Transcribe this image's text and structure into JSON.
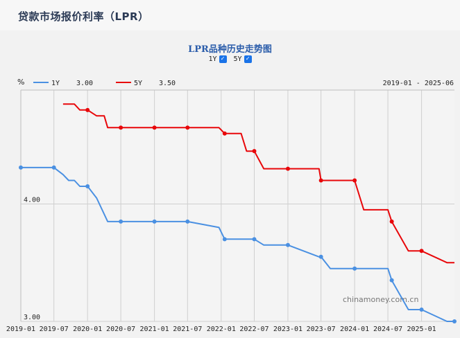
{
  "header": {
    "title": "贷款市场报价利率（LPR）"
  },
  "chart_title": "LPR品种历史走势图",
  "toggles": [
    {
      "label": "1Y",
      "checked": true
    },
    {
      "label": "5Y",
      "checked": true
    }
  ],
  "check_mark": "✓",
  "watermark": "chinamoney.com.cn",
  "colors": {
    "s1Y": "#4a90e2",
    "s5Y": "#e8070a",
    "grid": "#cfcfcf",
    "title": "#2a5caa"
  },
  "chart_data": {
    "type": "line",
    "unit": "%",
    "date_range": "2019-01 - 2025-06",
    "x_ticks": [
      "2019-01",
      "2019-07",
      "2020-01",
      "2020-07",
      "2021-01",
      "2021-07",
      "2022-01",
      "2022-07",
      "2023-01",
      "2023-07",
      "2024-01",
      "2024-07",
      "2025-01"
    ],
    "y_ticks": [
      "4.00",
      "3.00"
    ],
    "y_tick_values": [
      4.0,
      3.0
    ],
    "x_range": [
      "2019-01-01",
      "2025-06-30"
    ],
    "y_range": [
      3.0,
      4.97
    ],
    "legend": [
      {
        "name": "1Y",
        "value": "3.00"
      },
      {
        "name": "5Y",
        "value": "3.50"
      }
    ],
    "series": [
      {
        "name": "1Y",
        "points": [
          [
            "2019-01-01",
            4.31
          ],
          [
            "2019-07-01",
            4.31
          ],
          [
            "2019-08-20",
            4.25
          ],
          [
            "2019-09-20",
            4.2
          ],
          [
            "2019-10-21",
            4.2
          ],
          [
            "2019-11-20",
            4.15
          ],
          [
            "2020-01-01",
            4.15
          ],
          [
            "2020-02-20",
            4.05
          ],
          [
            "2020-04-20",
            3.85
          ],
          [
            "2020-07-01",
            3.85
          ],
          [
            "2021-01-01",
            3.85
          ],
          [
            "2021-07-01",
            3.85
          ],
          [
            "2021-12-20",
            3.8
          ],
          [
            "2022-01-20",
            3.7
          ],
          [
            "2022-07-01",
            3.7
          ],
          [
            "2022-08-22",
            3.65
          ],
          [
            "2023-01-01",
            3.65
          ],
          [
            "2023-06-20",
            3.55
          ],
          [
            "2023-07-01",
            3.55
          ],
          [
            "2023-08-21",
            3.45
          ],
          [
            "2024-01-01",
            3.45
          ],
          [
            "2024-07-01",
            3.45
          ],
          [
            "2024-07-22",
            3.35
          ],
          [
            "2024-10-21",
            3.1
          ],
          [
            "2025-01-01",
            3.1
          ],
          [
            "2025-05-20",
            3.0
          ],
          [
            "2025-06-30",
            3.0
          ]
        ],
        "markers": [
          "2019-01-01",
          "2019-07-01",
          "2020-01-01",
          "2020-07-01",
          "2021-01-01",
          "2021-07-01",
          "2022-01-20",
          "2022-07-01",
          "2023-01-01",
          "2023-07-01",
          "2024-01-01",
          "2024-07-22",
          "2025-01-01",
          "2025-06-30"
        ]
      },
      {
        "name": "5Y",
        "points": [
          [
            "2019-08-20",
            4.85
          ],
          [
            "2019-10-21",
            4.85
          ],
          [
            "2019-11-20",
            4.8
          ],
          [
            "2020-01-01",
            4.8
          ],
          [
            "2020-02-20",
            4.75
          ],
          [
            "2020-04-01",
            4.75
          ],
          [
            "2020-04-20",
            4.65
          ],
          [
            "2020-07-01",
            4.65
          ],
          [
            "2021-01-01",
            4.65
          ],
          [
            "2021-07-01",
            4.65
          ],
          [
            "2021-12-20",
            4.65
          ],
          [
            "2022-01-20",
            4.6
          ],
          [
            "2022-04-20",
            4.6
          ],
          [
            "2022-05-20",
            4.45
          ],
          [
            "2022-07-01",
            4.45
          ],
          [
            "2022-08-22",
            4.3
          ],
          [
            "2023-01-01",
            4.3
          ],
          [
            "2023-06-20",
            4.3
          ],
          [
            "2023-07-01",
            4.2
          ],
          [
            "2024-01-01",
            4.2
          ],
          [
            "2024-02-20",
            3.95
          ],
          [
            "2024-07-01",
            3.95
          ],
          [
            "2024-07-22",
            3.85
          ],
          [
            "2024-10-21",
            3.6
          ],
          [
            "2025-01-01",
            3.6
          ],
          [
            "2025-05-20",
            3.5
          ],
          [
            "2025-06-30",
            3.5
          ]
        ],
        "markers": [
          "2020-01-01",
          "2020-07-01",
          "2021-01-01",
          "2021-07-01",
          "2022-01-20",
          "2022-07-01",
          "2023-01-01",
          "2023-07-01",
          "2024-01-01",
          "2024-07-22",
          "2025-01-01"
        ]
      }
    ]
  }
}
